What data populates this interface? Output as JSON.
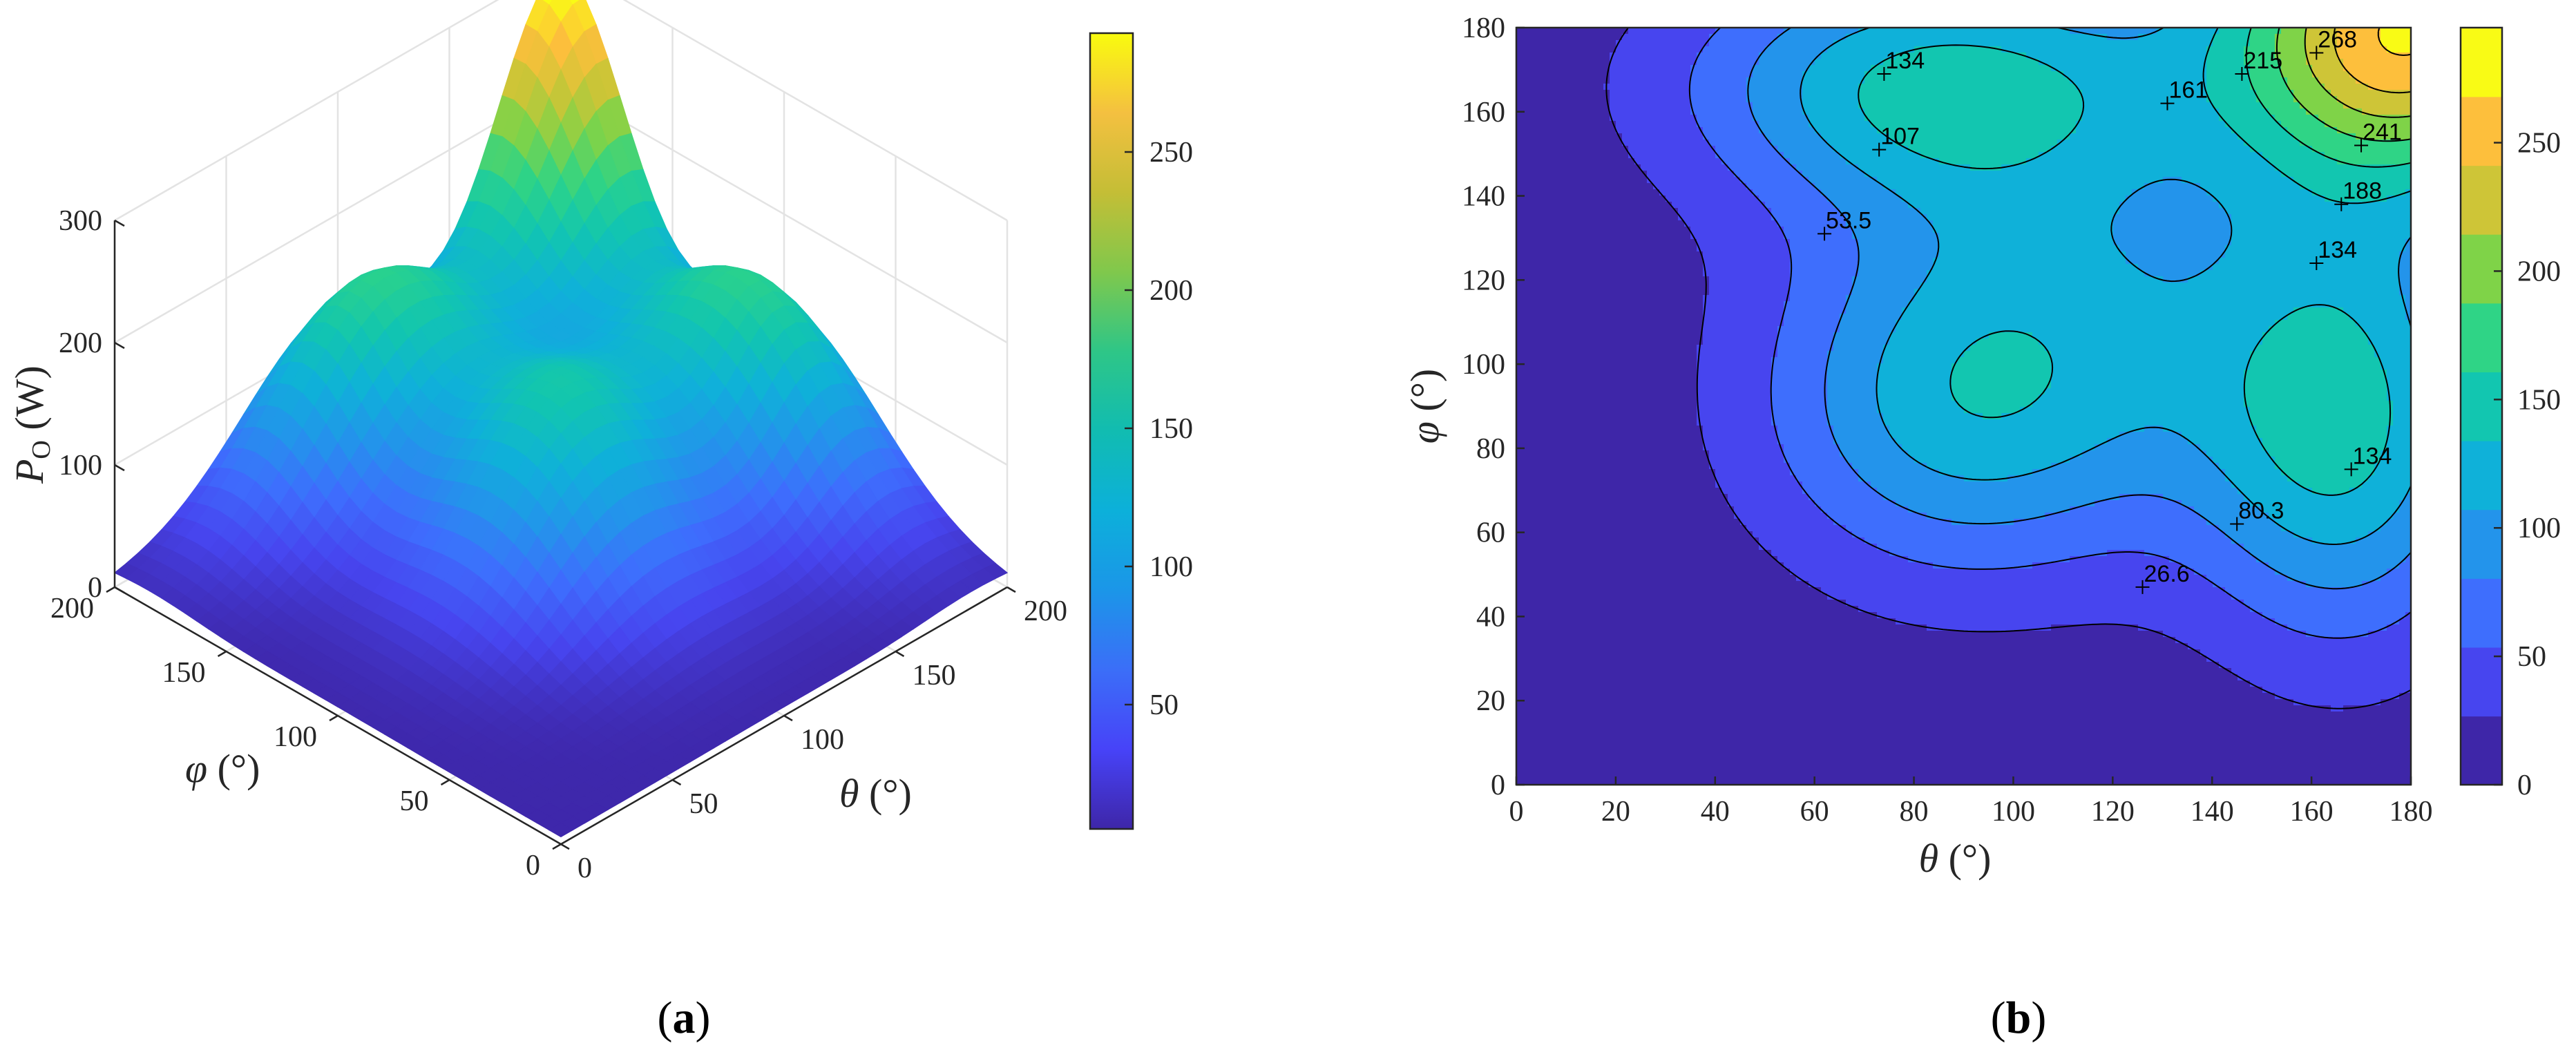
{
  "chart_data": [
    {
      "panel": "(a)",
      "type": "surface",
      "xlabel_symbol": "θ",
      "xlabel_unit": " (°)",
      "ylabel_symbol": "φ",
      "ylabel_unit": " (°)",
      "zlabel_symbol": "P",
      "zlabel_sub": "O",
      "zlabel_unit": " (W)",
      "xticks": [
        "0",
        "50",
        "100",
        "150",
        "200"
      ],
      "yticks": [
        "0",
        "50",
        "100",
        "150",
        "200"
      ],
      "zticks": [
        "0",
        "100",
        "200",
        "300"
      ],
      "xlim": [
        0,
        200
      ],
      "ylim": [
        0,
        200
      ],
      "zlim": [
        0,
        300
      ],
      "colorbar": {
        "ticks": [
          "50",
          "100",
          "150",
          "200",
          "250"
        ],
        "range": [
          5,
          293
        ]
      },
      "grid": true,
      "view": "isometric"
    },
    {
      "panel": "(b)",
      "type": "contour",
      "xlabel_symbol": "θ",
      "xlabel_unit": " (°)",
      "ylabel_symbol": "φ",
      "ylabel_unit": " (°)",
      "xticks": [
        "0",
        "20",
        "40",
        "60",
        "80",
        "100",
        "120",
        "140",
        "160",
        "180"
      ],
      "yticks": [
        "0",
        "20",
        "40",
        "60",
        "80",
        "100",
        "120",
        "140",
        "160",
        "180"
      ],
      "xlim": [
        0,
        180
      ],
      "ylim": [
        0,
        180
      ],
      "levels": [
        26.6,
        53.5,
        80.3,
        107,
        134,
        161,
        188,
        215,
        241,
        268
      ],
      "contour_labels": [
        {
          "text": "134",
          "x": 74,
          "y": 169
        },
        {
          "text": "268",
          "x": 161,
          "y": 174
        },
        {
          "text": "215",
          "x": 146,
          "y": 169
        },
        {
          "text": "161",
          "x": 131,
          "y": 162
        },
        {
          "text": "107",
          "x": 73,
          "y": 151
        },
        {
          "text": "241",
          "x": 170,
          "y": 152
        },
        {
          "text": "188",
          "x": 166,
          "y": 138
        },
        {
          "text": "53.5",
          "x": 62,
          "y": 131
        },
        {
          "text": "134",
          "x": 161,
          "y": 124
        },
        {
          "text": "134",
          "x": 168,
          "y": 75
        },
        {
          "text": "80.3",
          "x": 145,
          "y": 62
        },
        {
          "text": "26.6",
          "x": 126,
          "y": 47
        }
      ],
      "colorbar": {
        "ticks": [
          "0",
          "50",
          "100",
          "150",
          "200",
          "250"
        ],
        "range": [
          0,
          268
        ]
      }
    }
  ],
  "captions": {
    "a": "a",
    "b": "b"
  }
}
